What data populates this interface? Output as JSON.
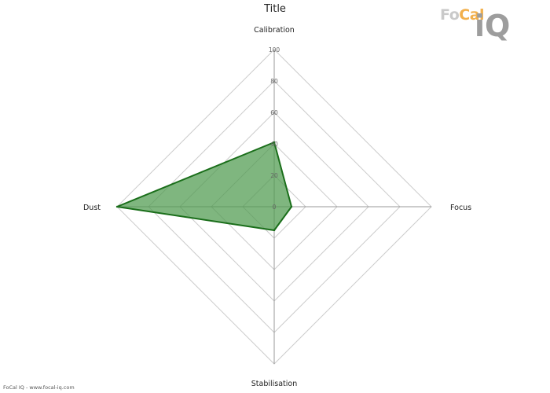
{
  "page": {
    "title": "Title"
  },
  "logo": {
    "prefix": "Fo",
    "highlight": "Cal",
    "mark": "iQ"
  },
  "footer": {
    "text": "FoCal IQ - www.focal-iq.com"
  },
  "colors": {
    "fill": "#4e9a4e",
    "stroke": "#1a6e1a",
    "grid": "#cccccc",
    "axis": "#999999"
  },
  "chart_data": {
    "type": "radar",
    "title": "Title",
    "axes": [
      "Calibration",
      "Focus",
      "Stabilisation",
      "Dust"
    ],
    "range": [
      0,
      100
    ],
    "ticks": [
      0,
      20,
      40,
      60,
      80,
      100
    ],
    "series": [
      {
        "values": [
          41,
          11,
          15,
          100
        ]
      }
    ],
    "grid": true,
    "legend": "none"
  }
}
